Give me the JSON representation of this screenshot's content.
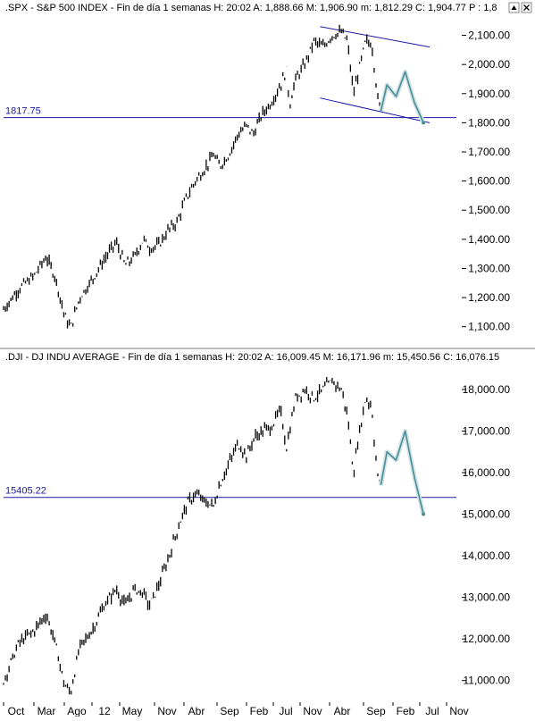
{
  "header_icons": [
    "up-arrow-icon",
    "close-icon"
  ],
  "x_axis": {
    "labels": [
      "Oct",
      "Mar",
      "Ago",
      "12",
      "May",
      "Nov",
      "Abr",
      "Sep",
      "Feb",
      "Jul",
      "Nov",
      "Abr",
      "Sep",
      "Feb",
      "Jul",
      "Nov"
    ]
  },
  "chart_data": [
    {
      "type": "bar",
      "header": ".SPX - S&P 500 INDEX - Fin de día 1 semanas  H: 20:02  A: 1,888.66  M: 1,906.90  m: 1,812.29  C: 1,904.77  P : 1,8",
      "ylim": [
        1050,
        2160
      ],
      "ytick_values": [
        1100,
        1200,
        1300,
        1400,
        1500,
        1600,
        1700,
        1800,
        1900,
        2000,
        2100
      ],
      "ytick_labels": [
        "1,100.00",
        "1,200.00",
        "1,300.00",
        "1,400.00",
        "1,500.00",
        "1,600.00",
        "1,700.00",
        "1,800.00",
        "1,900.00",
        "2,000.00",
        "2,100.00"
      ],
      "reference_line": {
        "value": 1817.75,
        "label": "1817.75",
        "color": "#1a1aa6"
      },
      "channel_color": "#1a1aa6",
      "projection_color": "#4a8c96",
      "price_path": [
        [
          0,
          1160
        ],
        [
          5,
          1230
        ],
        [
          10,
          1275
        ],
        [
          14,
          1340
        ],
        [
          17,
          1270
        ],
        [
          20,
          1140
        ],
        [
          22,
          1095
        ],
        [
          25,
          1200
        ],
        [
          29,
          1260
        ],
        [
          33,
          1330
        ],
        [
          37,
          1390
        ],
        [
          40,
          1310
        ],
        [
          43,
          1340
        ],
        [
          46,
          1400
        ],
        [
          48,
          1370
        ],
        [
          51,
          1380
        ],
        [
          54,
          1430
        ],
        [
          57,
          1460
        ],
        [
          60,
          1540
        ],
        [
          63,
          1600
        ],
        [
          66,
          1640
        ],
        [
          69,
          1690
        ],
        [
          71,
          1650
        ],
        [
          74,
          1690
        ],
        [
          77,
          1760
        ],
        [
          80,
          1790
        ],
        [
          82,
          1760
        ],
        [
          85,
          1830
        ],
        [
          88,
          1870
        ],
        [
          91,
          1930
        ],
        [
          93,
          1980
        ],
        [
          94,
          1860
        ],
        [
          96,
          1950
        ],
        [
          99,
          2000
        ],
        [
          102,
          2080
        ],
        [
          105,
          2060
        ],
        [
          108,
          2100
        ],
        [
          111,
          2110
        ],
        [
          113,
          2080
        ],
        [
          115,
          1900
        ],
        [
          117,
          1990
        ],
        [
          119,
          2080
        ],
        [
          121,
          2070
        ],
        [
          122,
          1980
        ],
        [
          123,
          1880
        ],
        [
          124,
          1840
        ]
      ],
      "projection": [
        [
          124,
          1840
        ],
        [
          126,
          1930
        ],
        [
          129,
          1890
        ],
        [
          132,
          1975
        ],
        [
          135,
          1870
        ],
        [
          138,
          1800
        ]
      ],
      "channel_upper": [
        [
          104,
          2130
        ],
        [
          140,
          2060
        ]
      ],
      "channel_lower": [
        [
          104,
          1885
        ],
        [
          140,
          1800
        ]
      ]
    },
    {
      "type": "bar",
      "header": ".DJI - DJ INDU AVERAGE - Fin de día 1 semanas  H: 20:02  A: 16,009.45  M: 16,171.96  m: 15,450.56  C: 16,076.15",
      "ylim": [
        10500,
        18600
      ],
      "ytick_values": [
        11000,
        12000,
        13000,
        14000,
        15000,
        16000,
        17000,
        18000
      ],
      "ytick_labels": [
        "11,000.00",
        "12,000.00",
        "13,000.00",
        "14,000.00",
        "15,000.00",
        "16,000.00",
        "17,000.00",
        "18,000.00"
      ],
      "reference_line": {
        "value": 15405.22,
        "label": "15405.22",
        "color": "#1a1aa6"
      },
      "projection_color": "#4a8c96",
      "price_path": [
        [
          0,
          11000
        ],
        [
          5,
          11900
        ],
        [
          10,
          12200
        ],
        [
          14,
          12600
        ],
        [
          17,
          11900
        ],
        [
          20,
          10900
        ],
        [
          22,
          10700
        ],
        [
          25,
          11800
        ],
        [
          29,
          12200
        ],
        [
          33,
          12800
        ],
        [
          37,
          13200
        ],
        [
          40,
          12800
        ],
        [
          43,
          13200
        ],
        [
          46,
          13100
        ],
        [
          48,
          12800
        ],
        [
          51,
          13300
        ],
        [
          54,
          13900
        ],
        [
          57,
          14600
        ],
        [
          60,
          15200
        ],
        [
          63,
          15500
        ],
        [
          66,
          15300
        ],
        [
          69,
          15200
        ],
        [
          71,
          15700
        ],
        [
          74,
          16200
        ],
        [
          77,
          16700
        ],
        [
          80,
          16400
        ],
        [
          82,
          16800
        ],
        [
          85,
          17000
        ],
        [
          88,
          17100
        ],
        [
          91,
          17500
        ],
        [
          93,
          16600
        ],
        [
          96,
          17800
        ],
        [
          99,
          18000
        ],
        [
          102,
          17800
        ],
        [
          105,
          18000
        ],
        [
          108,
          18200
        ],
        [
          111,
          18000
        ],
        [
          113,
          17400
        ],
        [
          115,
          16000
        ],
        [
          117,
          17000
        ],
        [
          119,
          17800
        ],
        [
          121,
          17600
        ],
        [
          122,
          16600
        ],
        [
          123,
          15900
        ],
        [
          124,
          15700
        ]
      ],
      "projection": [
        [
          124,
          15700
        ],
        [
          126,
          16500
        ],
        [
          129,
          16300
        ],
        [
          132,
          17000
        ],
        [
          135,
          15900
        ],
        [
          138,
          15000
        ]
      ]
    }
  ]
}
